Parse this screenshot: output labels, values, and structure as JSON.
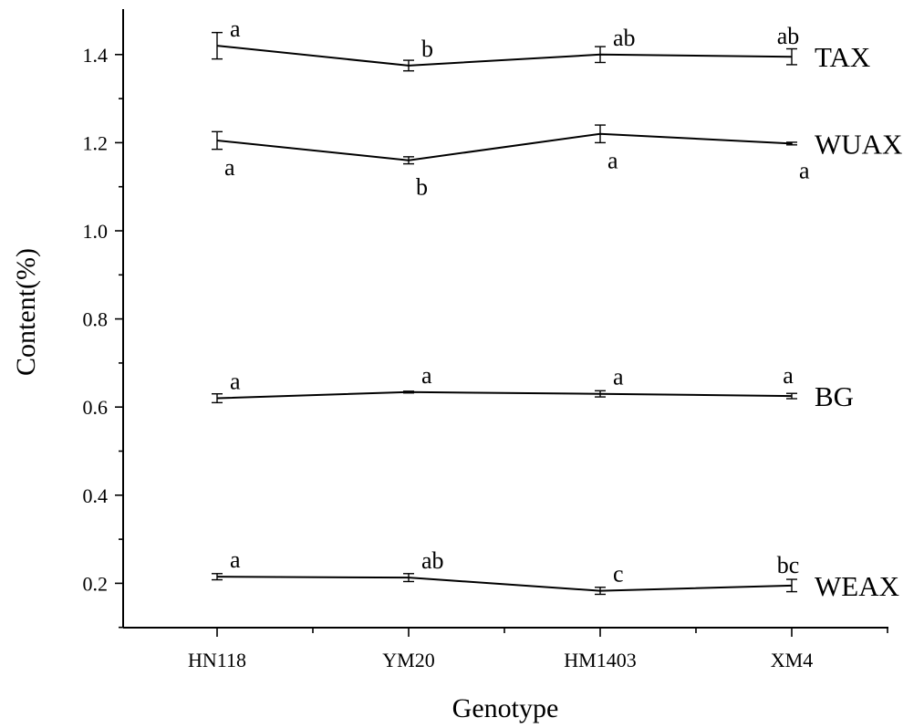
{
  "chart_data": {
    "type": "line",
    "xlabel": "Genotype",
    "ylabel": "Content(%)",
    "categories": [
      "HN118",
      "YM20",
      "HM1403",
      "XM4"
    ],
    "ylim": [
      0.0,
      1.5
    ],
    "yticks": [
      "0.2",
      "0.4",
      "0.6",
      "0.8",
      "1.0",
      "1.2",
      "1.4"
    ],
    "grid": false,
    "series": [
      {
        "name": "TAX",
        "values": [
          1.42,
          1.375,
          1.4,
          1.395
        ],
        "errors": [
          0.03,
          0.012,
          0.018,
          0.018
        ],
        "letters": [
          "a",
          "b",
          "ab",
          "ab"
        ],
        "letter_pos": [
          "above",
          "above",
          "above",
          "above"
        ]
      },
      {
        "name": "WUAX",
        "values": [
          1.205,
          1.16,
          1.22,
          1.198
        ],
        "errors": [
          0.02,
          0.008,
          0.02,
          0.003
        ],
        "letters": [
          "a",
          "b",
          "a",
          "a"
        ],
        "letter_pos": [
          "below",
          "below",
          "below",
          "below"
        ]
      },
      {
        "name": "BG",
        "values": [
          0.62,
          0.634,
          0.63,
          0.625
        ],
        "errors": [
          0.01,
          0.002,
          0.007,
          0.006
        ],
        "letters": [
          "a",
          "a",
          "a",
          "a"
        ],
        "letter_pos": [
          "above",
          "above",
          "above",
          "above"
        ]
      },
      {
        "name": "WEAX",
        "values": [
          0.215,
          0.213,
          0.183,
          0.195
        ],
        "errors": [
          0.007,
          0.009,
          0.008,
          0.014
        ],
        "letters": [
          "a",
          "ab",
          "c",
          "bc"
        ],
        "letter_pos": [
          "above",
          "above",
          "above",
          "above"
        ]
      }
    ]
  }
}
